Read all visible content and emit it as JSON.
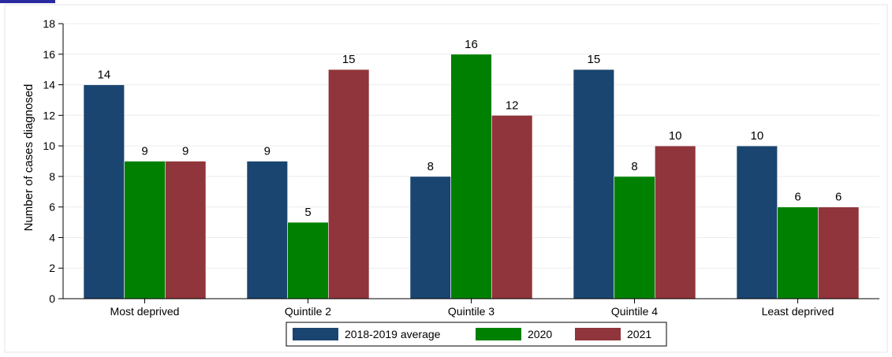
{
  "chart_data": {
    "type": "bar",
    "title": "",
    "xlabel": "",
    "ylabel": "Number of cases diagnosed",
    "ylim": [
      0,
      18
    ],
    "yticks": [
      0,
      2,
      4,
      6,
      8,
      10,
      12,
      14,
      16,
      18
    ],
    "grid": true,
    "legend_position": "bottom",
    "categories": [
      "Most deprived",
      "Quintile 2",
      "Quintile 3",
      "Quintile 4",
      "Least deprived"
    ],
    "series": [
      {
        "name": "2018-2019 average",
        "color": "#1a4570",
        "values": [
          14,
          9,
          8,
          15,
          10
        ]
      },
      {
        "name": "2020",
        "color": "#008000",
        "values": [
          9,
          5,
          16,
          8,
          6
        ]
      },
      {
        "name": "2021",
        "color": "#90353b",
        "values": [
          9,
          15,
          12,
          10,
          6
        ]
      }
    ]
  }
}
